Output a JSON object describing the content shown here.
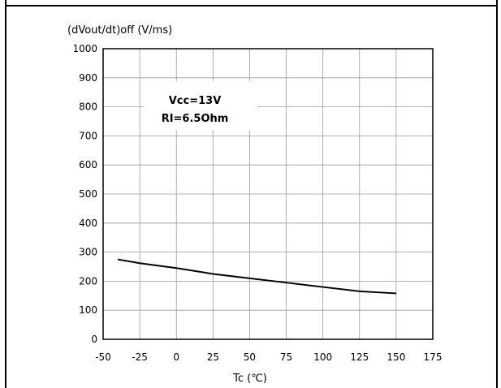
{
  "chart_data": {
    "type": "line",
    "title": "",
    "ylabel": "(dVout/dt)off (V/ms)",
    "xlabel": "Tc (℃)",
    "xlim": [
      -50,
      175
    ],
    "ylim": [
      0,
      1000
    ],
    "x_ticks": [
      "-50",
      "-25",
      "0",
      "25",
      "50",
      "75",
      "100",
      "125",
      "150",
      "175"
    ],
    "y_ticks": [
      "1000",
      "900",
      "800",
      "700",
      "600",
      "500",
      "400",
      "300",
      "200",
      "100",
      "0"
    ],
    "grid": true,
    "annotations": [
      "Vcc=13V",
      "RI=6.5Ohm"
    ],
    "series": [
      {
        "x": [
          -40,
          -25,
          0,
          25,
          50,
          75,
          100,
          125,
          150
        ],
        "y": [
          275,
          262,
          245,
          225,
          210,
          195,
          180,
          165,
          158
        ]
      }
    ]
  }
}
